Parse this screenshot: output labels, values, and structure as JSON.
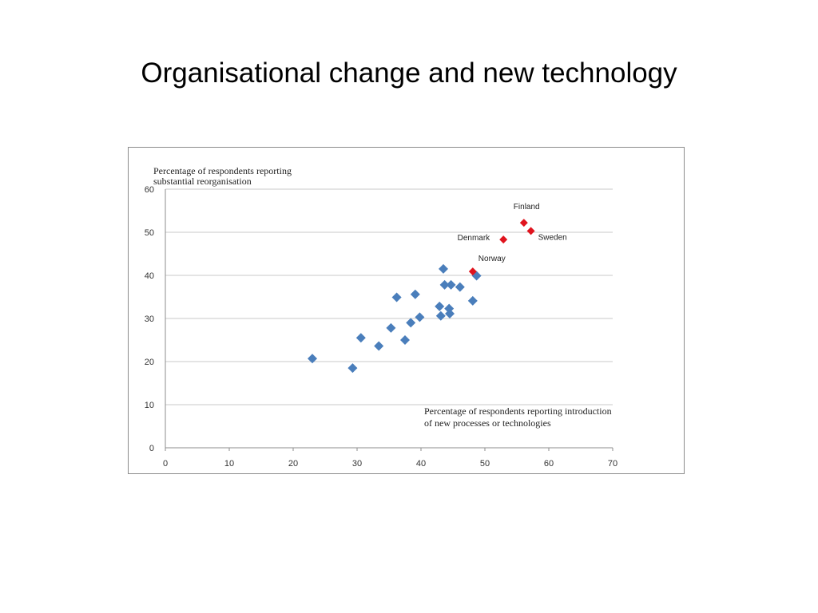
{
  "slide": {
    "title": "Organisational change and new technology"
  },
  "chart_data": {
    "type": "scatter",
    "title": "",
    "ylabel_lines": [
      "Percentage of respondents reporting",
      "substantial reorganisation"
    ],
    "xlabel_lines": [
      "Percentage of respondents reporting introduction",
      "of new processes or technologies"
    ],
    "xlim": [
      0,
      70
    ],
    "ylim": [
      0,
      60
    ],
    "xticks": [
      0,
      10,
      20,
      30,
      40,
      50,
      60,
      70
    ],
    "yticks": [
      0,
      10,
      20,
      30,
      40,
      50,
      60
    ],
    "grid": "horizontal",
    "colors": {
      "other": "#4a7ebb",
      "nordic": "#e0141e",
      "grid": "#c8c8c8",
      "axis": "#8c8c8c"
    },
    "series": [
      {
        "points": [
          [
            23,
            20.7
          ],
          [
            29.3,
            18.5
          ],
          [
            30.6,
            25.5
          ],
          [
            33.4,
            23.6
          ],
          [
            35.3,
            27.8
          ],
          [
            36.2,
            34.9
          ],
          [
            37.5,
            25
          ],
          [
            38.4,
            29
          ],
          [
            39.1,
            35.6
          ],
          [
            39.8,
            30.3
          ],
          [
            42.9,
            32.8
          ],
          [
            43.1,
            30.6
          ],
          [
            43.5,
            41.5
          ],
          [
            43.7,
            37.8
          ],
          [
            44.4,
            32.3
          ],
          [
            44.5,
            31.1
          ],
          [
            44.7,
            37.8
          ],
          [
            46.1,
            37.3
          ],
          [
            48.1,
            34.1
          ],
          [
            48.7,
            39.9
          ]
        ]
      },
      {
        "labeled_points": [
          {
            "label": "Finland",
            "x": 56.1,
            "y": 52.2
          },
          {
            "label": "Sweden",
            "x": 57.2,
            "y": 50.3
          },
          {
            "label": "Denmark",
            "x": 52.9,
            "y": 48.3
          },
          {
            "label": "Norway",
            "x": 48.1,
            "y": 40.9
          }
        ]
      }
    ]
  }
}
